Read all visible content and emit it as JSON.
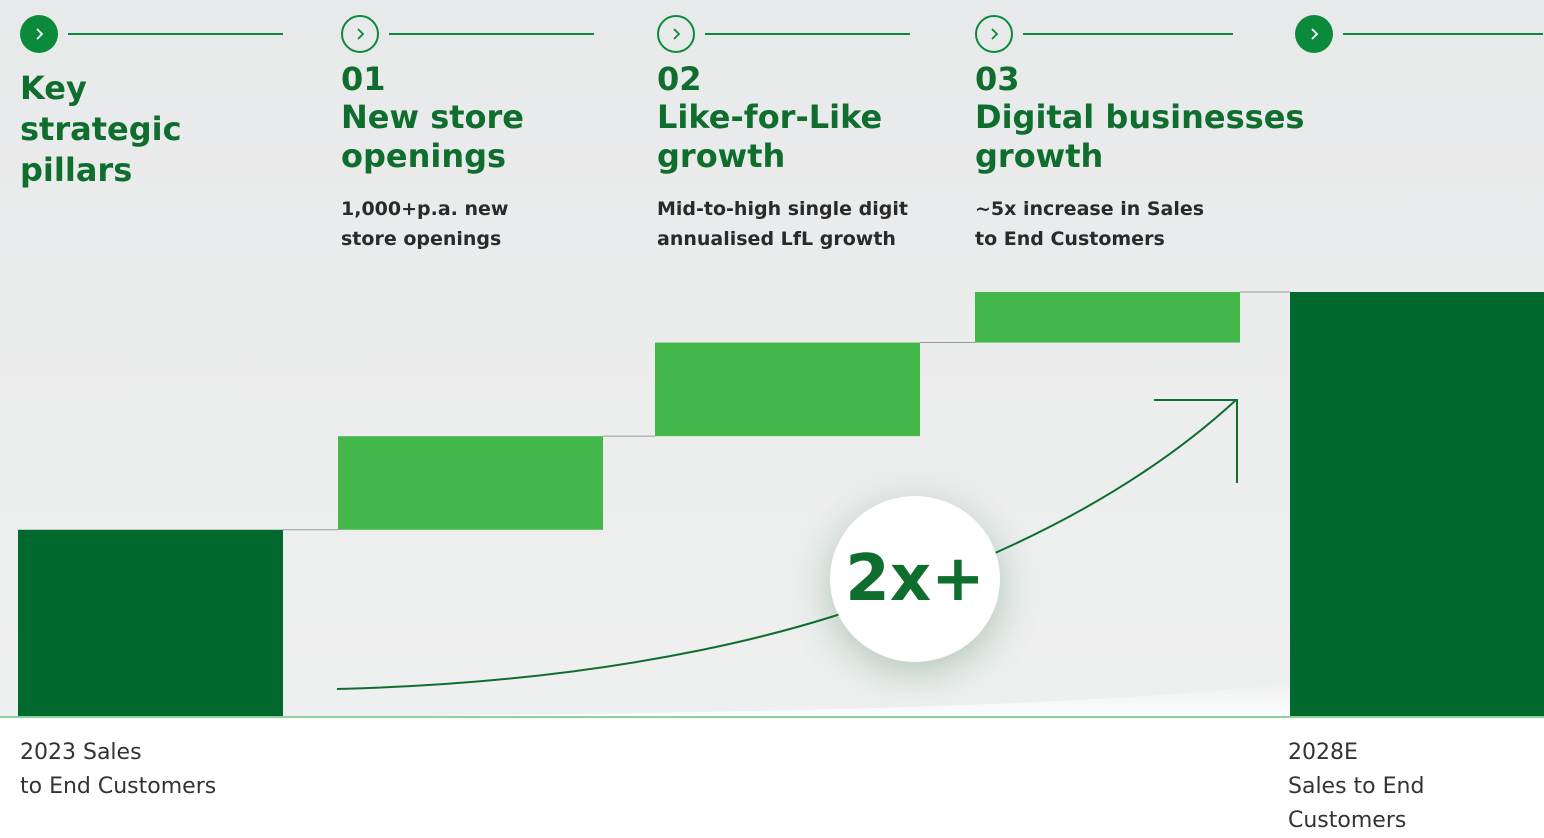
{
  "key_title": "Key\nstrategic\npillars",
  "pillars": [
    {
      "number": "01",
      "title": "New store\nopenings",
      "description": "1,000+p.a. new\nstore openings"
    },
    {
      "number": "02",
      "title": "Like-for-Like\ngrowth",
      "description": "Mid-to-high single digit\nannualised LfL growth"
    },
    {
      "number": "03",
      "title": "Digital businesses\ngrowth",
      "description": "~5x increase in Sales\nto End Customers"
    }
  ],
  "icons": {
    "arrow": "chevron-right-icon"
  },
  "colors": {
    "dark_green": "#006a2e",
    "light_green": "#44b74a",
    "text_green": "#0f6e2e",
    "circle_green": "#0a8a3a"
  },
  "multiplier": "2x+",
  "chart_data": {
    "type": "bar",
    "subtype": "waterfall",
    "categories": [
      "2023 Sales\nto End Customers",
      "01",
      "02",
      "03",
      "2028E\nSales to End\nCustomers"
    ],
    "series": [
      {
        "values": [
          1.0,
          0.5,
          0.5,
          0.27,
          2.27
        ]
      }
    ],
    "step_kinds": [
      "total",
      "increase",
      "increase",
      "increase",
      "total"
    ],
    "annotations": [
      "2x+"
    ],
    "title": "",
    "xlabel": "",
    "ylabel": "",
    "ylim": [
      0,
      2.27
    ],
    "grid": false
  }
}
